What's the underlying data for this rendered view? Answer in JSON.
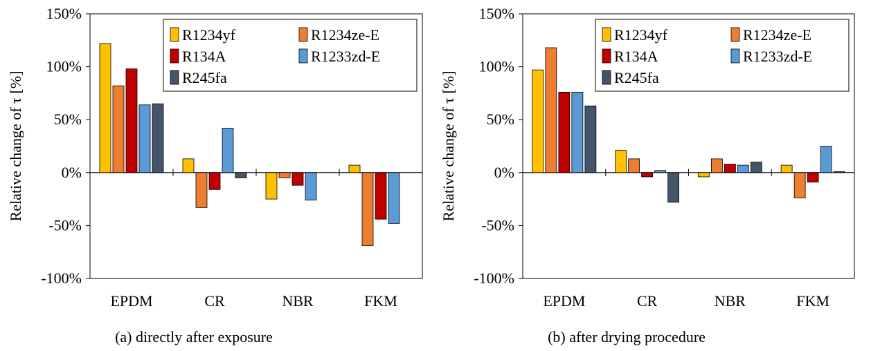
{
  "chart_data": [
    {
      "type": "bar",
      "caption": "(a) directly after exposure",
      "ylabel": "Relative change of τ [%]",
      "ylim": [
        -100,
        150
      ],
      "yticks": [
        150,
        100,
        50,
        0,
        -50,
        -100
      ],
      "ytick_labels": [
        "150%",
        "100%",
        "50%",
        "0%",
        "-50%",
        "-100%"
      ],
      "categories": [
        "EPDM",
        "CR",
        "NBR",
        "FKM"
      ],
      "legend_position": "top-right",
      "series": [
        {
          "name": "R1234yf",
          "color": "#FFC000",
          "values": [
            122,
            13,
            -25,
            7
          ]
        },
        {
          "name": "R1234ze-E",
          "color": "#ED7D31",
          "values": [
            82,
            -33,
            -5,
            -69
          ]
        },
        {
          "name": "R134A",
          "color": "#C00000",
          "values": [
            98,
            -16,
            -12,
            -44
          ]
        },
        {
          "name": "R1233zd-E",
          "color": "#5B9BD5",
          "values": [
            64,
            42,
            -26,
            -48
          ]
        },
        {
          "name": "R245fa",
          "color": "#44546A",
          "values": [
            65,
            -5,
            0,
            0
          ]
        }
      ]
    },
    {
      "type": "bar",
      "caption": "(b) after drying procedure",
      "ylabel": "Relative change of τ [%]",
      "ylim": [
        -100,
        150
      ],
      "yticks": [
        150,
        100,
        50,
        0,
        -50,
        -100
      ],
      "ytick_labels": [
        "150%",
        "100%",
        "50%",
        "0%",
        "-50%",
        "-100%"
      ],
      "categories": [
        "EPDM",
        "CR",
        "NBR",
        "FKM"
      ],
      "legend_position": "top-right",
      "series": [
        {
          "name": "R1234yf",
          "color": "#FFC000",
          "values": [
            97,
            21,
            -4,
            7
          ]
        },
        {
          "name": "R1234ze-E",
          "color": "#ED7D31",
          "values": [
            118,
            13,
            13,
            -24
          ]
        },
        {
          "name": "R134A",
          "color": "#C00000",
          "values": [
            76,
            -4,
            8,
            -9
          ]
        },
        {
          "name": "R1233zd-E",
          "color": "#5B9BD5",
          "values": [
            76,
            2,
            7,
            25
          ]
        },
        {
          "name": "R245fa",
          "color": "#44546A",
          "values": [
            63,
            -28,
            10,
            1
          ]
        }
      ]
    }
  ]
}
